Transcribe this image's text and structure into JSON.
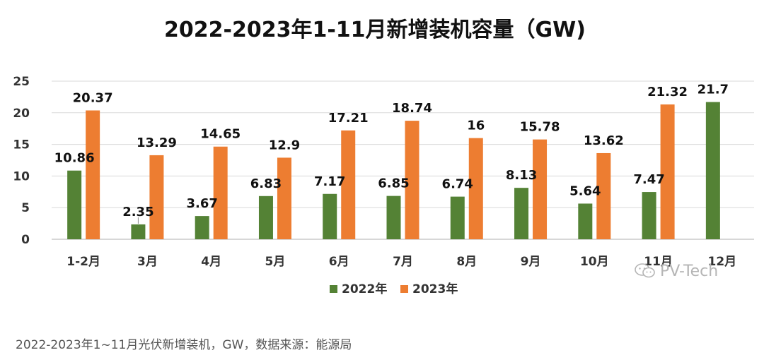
{
  "chart_data": {
    "type": "bar",
    "title": "2022-2023年1-11月新增装机容量（GW)",
    "categories": [
      "1-2月",
      "3月",
      "4月",
      "5月",
      "6月",
      "7月",
      "8月",
      "9月",
      "10月",
      "11月",
      "12月"
    ],
    "series": [
      {
        "name": "2022年",
        "color": "#548235",
        "values": [
          10.86,
          2.35,
          3.67,
          6.83,
          7.17,
          6.85,
          6.74,
          8.13,
          5.64,
          7.47,
          21.7
        ],
        "labels": [
          "10.86",
          "2.35",
          "3.67",
          "6.83",
          "7.17",
          "6.85",
          "6.74",
          "8.13",
          "5.64",
          "7.47",
          "21.7"
        ]
      },
      {
        "name": "2023年",
        "color": "#ED7D31",
        "values": [
          20.37,
          13.29,
          14.65,
          12.9,
          17.21,
          18.74,
          16,
          15.78,
          13.62,
          21.32,
          null
        ],
        "labels": [
          "20.37",
          "13.29",
          "14.65",
          "12.9",
          "17.21",
          "18.74",
          "16",
          "15.78",
          "13.62",
          "21.32",
          ""
        ]
      }
    ],
    "y_ticks": [
      "0",
      "5",
      "10",
      "15",
      "20",
      "25"
    ],
    "ylim": [
      0,
      25
    ],
    "grid": true,
    "legend_position": "bottom"
  },
  "watermark": {
    "text": "PV-Tech",
    "icon": "wechat-icon"
  },
  "caption": "2022-2023年1~11月光伏新增装机，GW，数据来源：能源局"
}
